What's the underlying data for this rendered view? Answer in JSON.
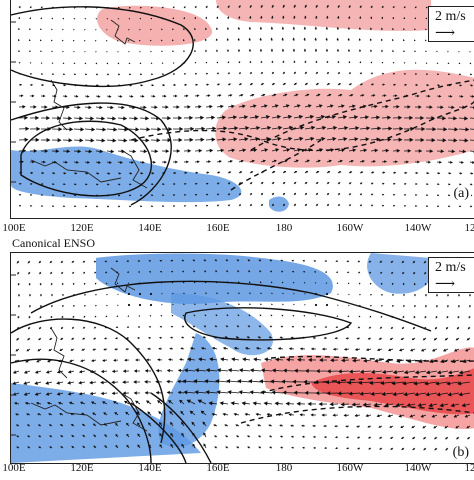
{
  "x_axis": {
    "tick_labels": [
      "100E",
      "120E",
      "140E",
      "160E",
      "180",
      "160W",
      "140W",
      "12"
    ]
  },
  "panel_a": {
    "legend_text": "2 m/s",
    "legend_arrow": "⟶",
    "panel_label": "(a)",
    "colors": {
      "positive": "#f28c8c",
      "negative": "#4d8fe0",
      "vector": "#111111",
      "contour": "#111111"
    }
  },
  "panel_b": {
    "title": "Canonical ENSO",
    "legend_text": "2 m/s",
    "legend_arrow": "⟶",
    "panel_label": "(b)",
    "colors": {
      "positive": "#e8484a",
      "negative": "#4d8fe0",
      "vector": "#111111",
      "contour": "#111111"
    }
  }
}
